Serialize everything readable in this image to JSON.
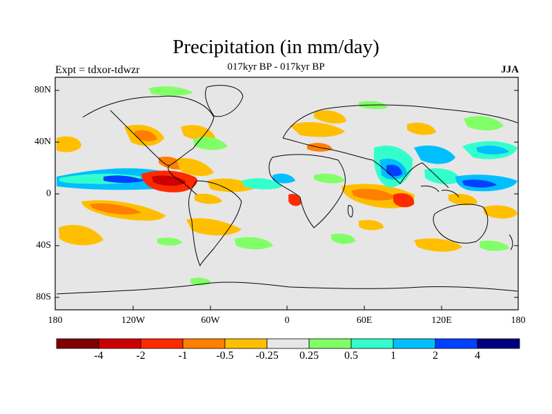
{
  "title": "Precipitation (in mm/day)",
  "subtitle": "017kyr BP - 017kyr BP",
  "left_label": "Expt = tdxor-tdwzr",
  "right_label": "JJA",
  "lat_labels": [
    "80N",
    "40N",
    "0",
    "40S",
    "80S"
  ],
  "lon_labels": [
    "180",
    "120W",
    "60W",
    "0",
    "60E",
    "120E",
    "180"
  ],
  "colorbar": {
    "colors": [
      "#7f0000",
      "#cc0000",
      "#ff2a00",
      "#ff7f00",
      "#ffbf00",
      "#e6e6e6",
      "#80ff66",
      "#33ffcc",
      "#00bfff",
      "#0040ff",
      "#00007f"
    ],
    "labels": [
      "-4",
      "-2",
      "-1",
      "-0.5",
      "-0.25",
      "0.25",
      "0.5",
      "1",
      "2",
      "4"
    ]
  },
  "colors": {
    "land_sea_background": "#e6e6e6",
    "coastline": "#000000"
  }
}
